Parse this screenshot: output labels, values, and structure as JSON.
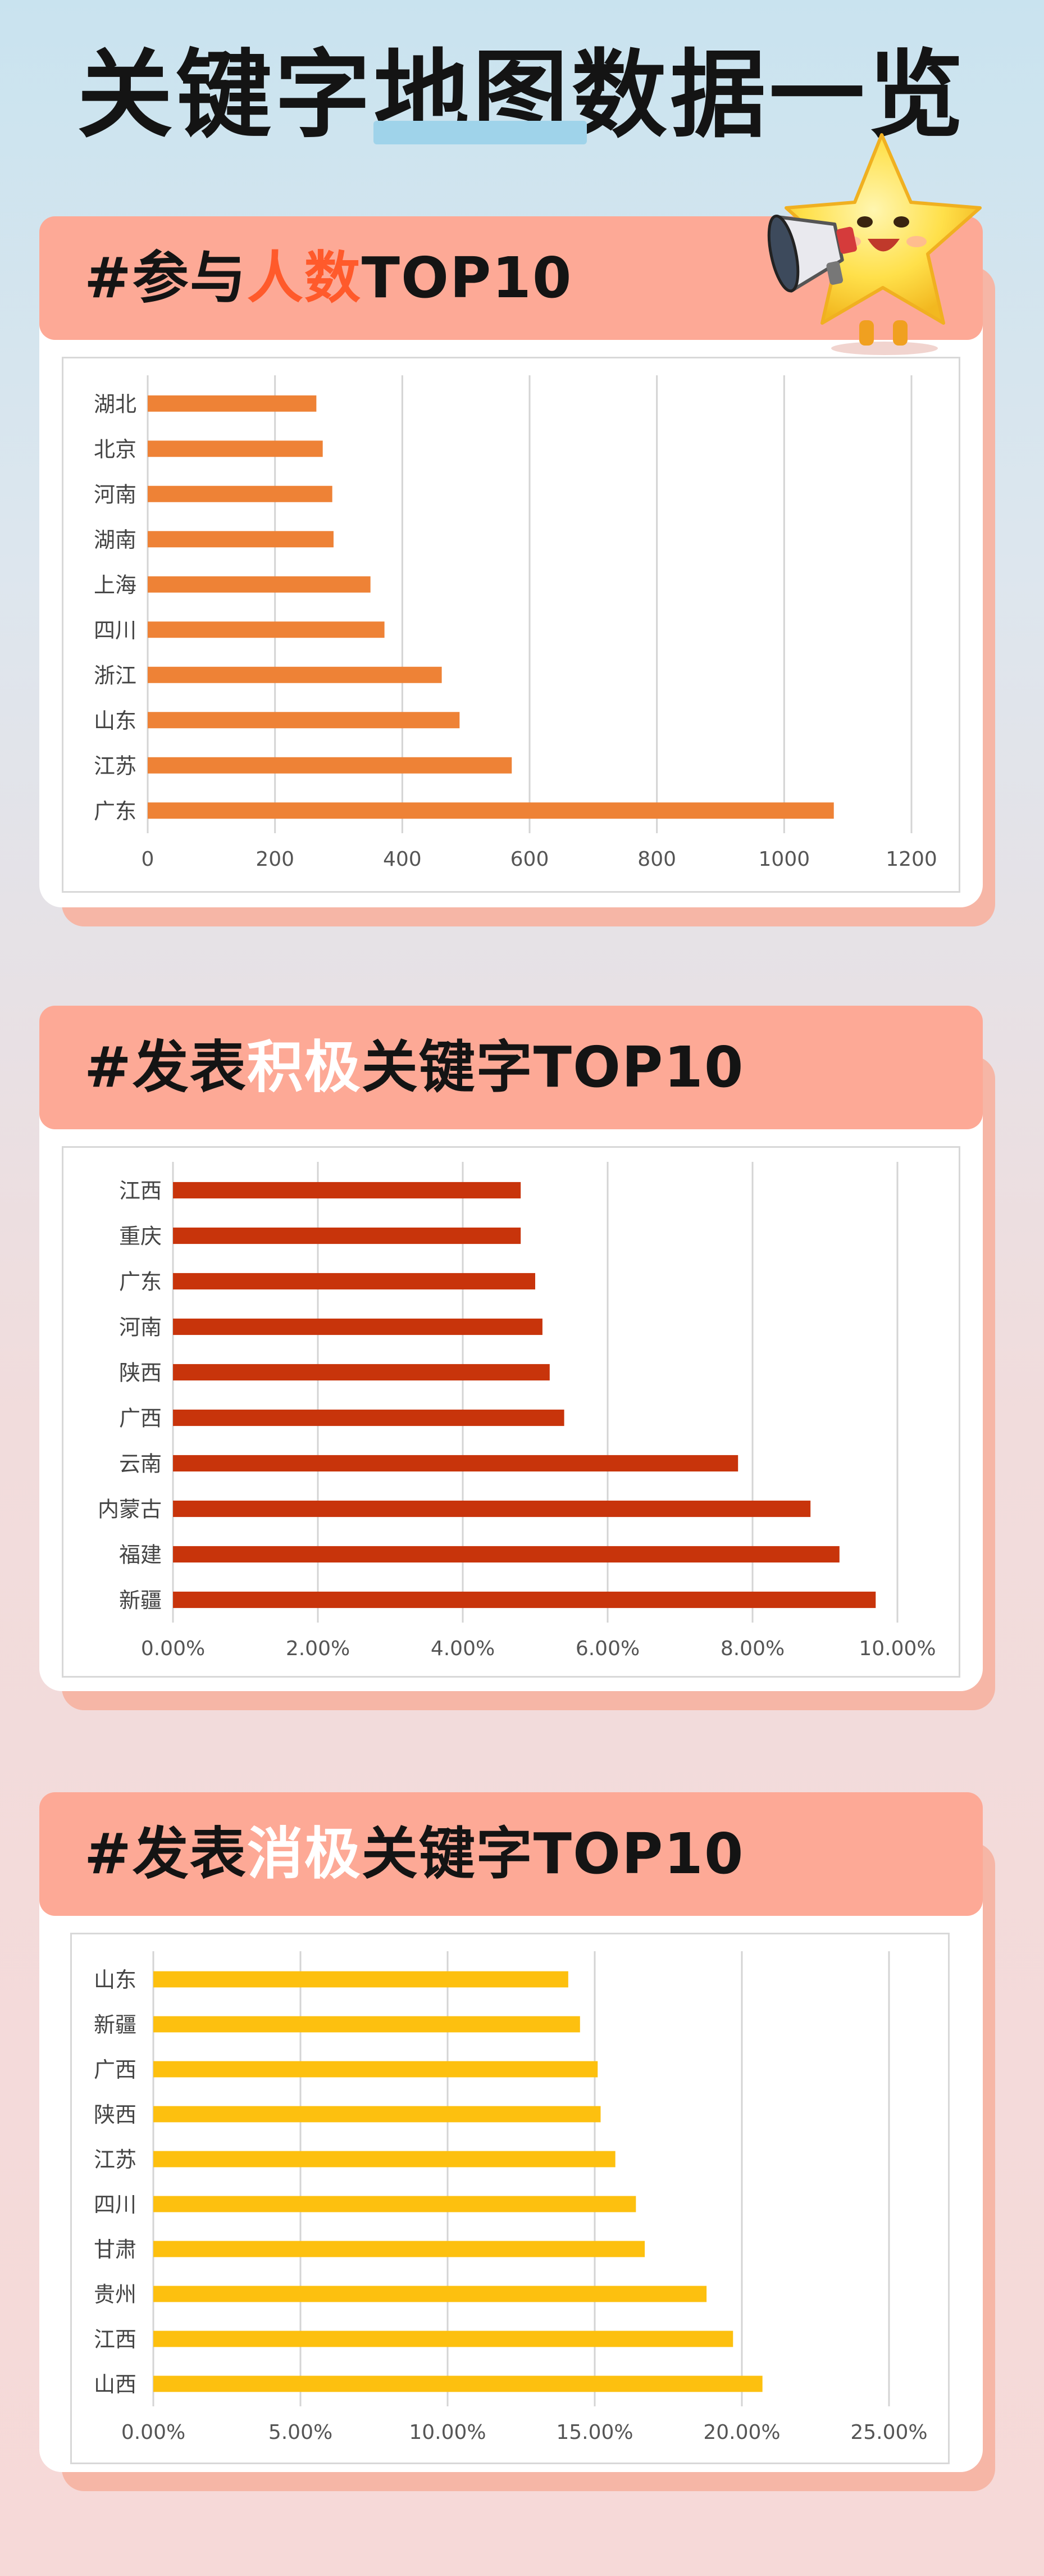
{
  "title": "关键字地图数据一览",
  "sections": [
    {
      "heading": [
        "#参与",
        "人数",
        "TOP10"
      ],
      "chart_data": {
        "type": "bar",
        "orientation": "horizontal",
        "categories": [
          "湖北",
          "北京",
          "河南",
          "湖南",
          "上海",
          "四川",
          "浙江",
          "山东",
          "江苏",
          "广东"
        ],
        "values": [
          265,
          275,
          290,
          292,
          350,
          372,
          462,
          490,
          572,
          1078
        ],
        "xlim": [
          0,
          1200
        ],
        "xticks": [
          "0",
          "200",
          "400",
          "600",
          "800",
          "1000",
          "1200"
        ],
        "color": "#ee8236",
        "grid": true
      }
    },
    {
      "heading": [
        "#发表",
        "积极",
        "关键字TOP10"
      ],
      "chart_data": {
        "type": "bar",
        "orientation": "horizontal",
        "categories": [
          "江西",
          "重庆",
          "广东",
          "河南",
          "陕西",
          "广西",
          "云南",
          "内蒙古",
          "福建",
          "新疆"
        ],
        "values": [
          4.8,
          4.8,
          5.0,
          5.1,
          5.2,
          5.4,
          7.8,
          8.8,
          9.2,
          9.7
        ],
        "value_unit": "%",
        "xlim": [
          0,
          10
        ],
        "xticks": [
          "0.00%",
          "2.00%",
          "4.00%",
          "6.00%",
          "8.00%",
          "10.00%"
        ],
        "color": "#c8340b",
        "grid": true
      }
    },
    {
      "heading": [
        "#发表",
        "消极",
        "关键字TOP10"
      ],
      "chart_data": {
        "type": "bar",
        "orientation": "horizontal",
        "categories": [
          "山东",
          "新疆",
          "广西",
          "陕西",
          "江苏",
          "四川",
          "甘肃",
          "贵州",
          "江西",
          "山西"
        ],
        "values": [
          14.1,
          14.5,
          15.1,
          15.2,
          15.7,
          16.4,
          16.7,
          18.8,
          19.7,
          20.7
        ],
        "value_unit": "%",
        "xlim": [
          0,
          25
        ],
        "xticks": [
          "0.00%",
          "5.00%",
          "10.00%",
          "15.00%",
          "20.00%",
          "25.00%"
        ],
        "color": "#fdc00f",
        "grid": true
      }
    }
  ],
  "colors": {
    "header": "#fda996",
    "card_shadow": "#f6b6a6",
    "title_highlight": "#9fd3ea"
  },
  "mascot": "star-mascot-with-megaphone"
}
